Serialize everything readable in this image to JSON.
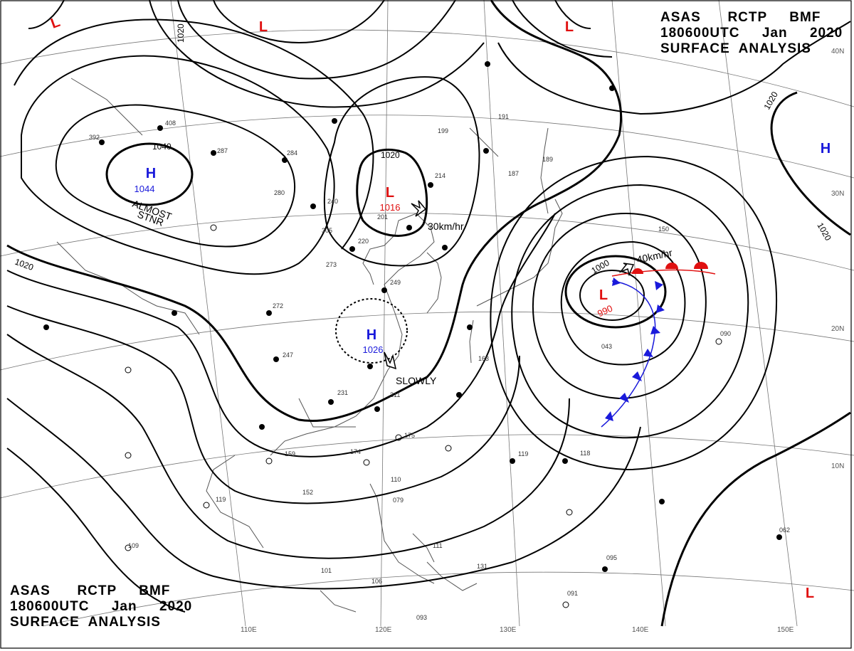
{
  "title": {
    "line1": "ASAS      RCTP     BMF",
    "line2": "180600UTC     Jan     2020",
    "line3": "SURFACE  ANALYSIS"
  },
  "pressure_centers": [
    {
      "type": "H",
      "value": "1044",
      "color": "#1a1adb"
    },
    {
      "type": "L",
      "value": "1016",
      "color": "#e01010"
    },
    {
      "type": "H",
      "value": "1026",
      "color": "#1a1adb"
    },
    {
      "type": "L",
      "value": "990",
      "color": "#e01010"
    },
    {
      "type": "H",
      "value": "",
      "color": "#1a1adb"
    },
    {
      "type": "L",
      "value": "",
      "color": "#e01010"
    },
    {
      "type": "L",
      "value": "",
      "color": "#e01010"
    },
    {
      "type": "L",
      "value": "",
      "color": "#e01010"
    },
    {
      "type": "L",
      "value": "",
      "color": "#e01010"
    }
  ],
  "movements": {
    "almost": "ALMOST",
    "stnr": "STNR",
    "low_china": "30km/hr",
    "high_slowly": "SLOWLY",
    "low_japan": "40km/hr"
  },
  "isobar_labels": [
    "1020",
    "1040",
    "1020",
    "1020",
    "1020",
    "1020",
    "1000"
  ],
  "lon_labels": [
    "110E",
    "120E",
    "130E",
    "140E",
    "150E"
  ],
  "lat_labels": [
    "40N",
    "30N",
    "20N",
    "10N"
  ],
  "station_samples": [
    "392",
    "408",
    "287",
    "284",
    "280",
    "240",
    "305",
    "273",
    "220",
    "249",
    "272",
    "247",
    "231",
    "211",
    "163",
    "175",
    "174",
    "159",
    "152",
    "119",
    "109",
    "101",
    "106",
    "093",
    "110",
    "079",
    "111",
    "131",
    "095",
    "091",
    "199",
    "191",
    "187",
    "189",
    "214",
    "201",
    "150",
    "043",
    "090",
    "118",
    "119",
    "062"
  ]
}
